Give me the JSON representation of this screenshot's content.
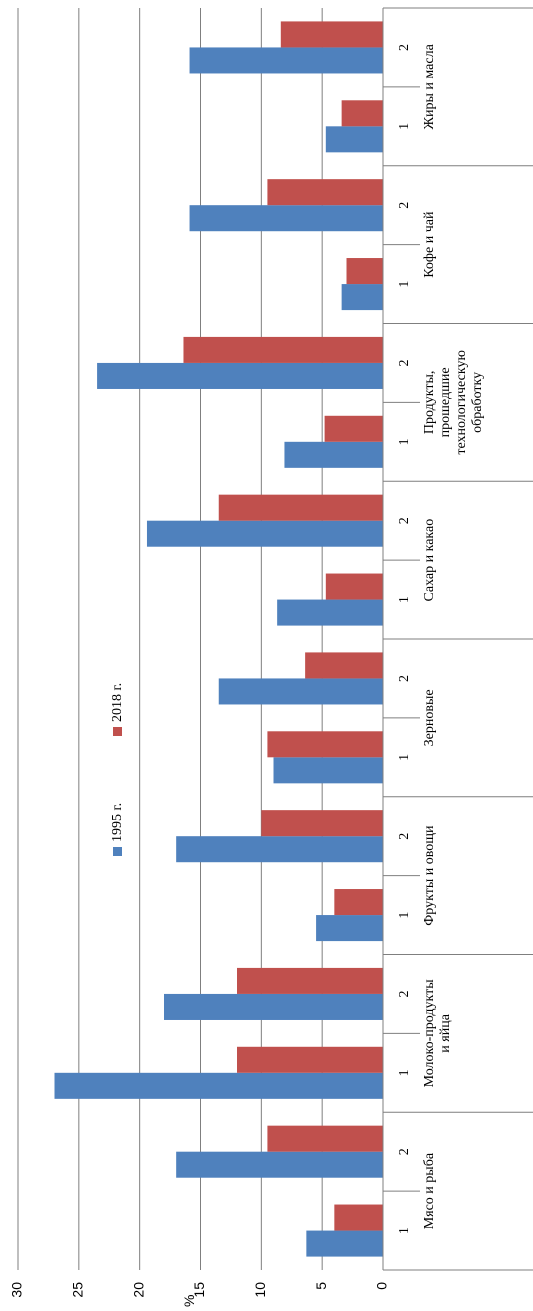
{
  "chart_data": {
    "type": "bar",
    "axis_title": "%",
    "groups": [
      "Мясо и рыба",
      "Молоко-продукты и яйца",
      "Фрукты и овощи",
      "Зерновые",
      "Сахар и какао",
      "Продукты, прошедшие технологическую обработку",
      "Кофе и чай",
      "Жиры и масла"
    ],
    "categories": [
      "1",
      "2",
      "1",
      "2",
      "1",
      "2",
      "1",
      "2",
      "1",
      "2",
      "1",
      "2",
      "1",
      "2",
      "1",
      "2"
    ],
    "series": [
      {
        "name": "1995 г.",
        "color": "#4f81bd",
        "values": [
          6.3,
          17,
          27,
          18,
          5.5,
          17,
          9,
          13.5,
          8.7,
          19.4,
          8.1,
          23.5,
          3.4,
          15.9,
          4.7,
          15.9
        ]
      },
      {
        "name": "2018 г.",
        "color": "#c0504d",
        "values": [
          4,
          9.5,
          12,
          12,
          4,
          10,
          9.5,
          6.4,
          4.7,
          13.5,
          4.8,
          16.4,
          3,
          9.5,
          3.4,
          8.4
        ]
      }
    ],
    "ylim": [
      0,
      30
    ],
    "yticks": [
      0,
      5,
      10,
      15,
      20,
      25,
      30
    ],
    "grid": true
  }
}
